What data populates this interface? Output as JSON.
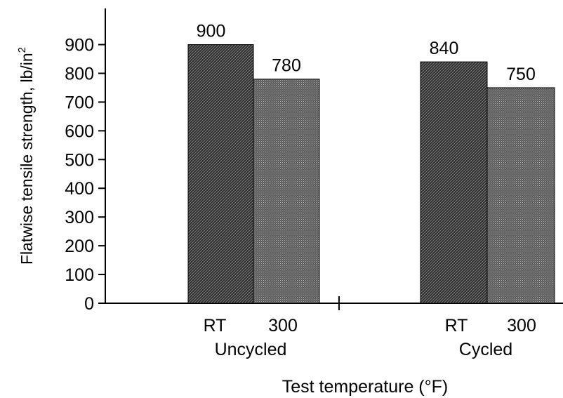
{
  "chart_data": {
    "type": "bar",
    "ylabel": "Flatwise tensile strength, lb/in",
    "ylabel_superscript": "2",
    "xlabel": "Test temperature (°F)",
    "ylim": [
      0,
      1000
    ],
    "yticks": [
      0,
      100,
      200,
      300,
      400,
      500,
      600,
      700,
      800,
      900
    ],
    "groups": [
      {
        "label": "Uncycled",
        "bars": [
          {
            "category": "RT",
            "value": 900,
            "data_label": "900",
            "pattern": "dark"
          },
          {
            "category": "300",
            "value": 780,
            "data_label": "780",
            "pattern": "light"
          }
        ]
      },
      {
        "label": "Cycled",
        "bars": [
          {
            "category": "RT",
            "value": 840,
            "data_label": "840",
            "pattern": "dark"
          },
          {
            "category": "300",
            "value": 750,
            "data_label": "750",
            "pattern": "light"
          }
        ]
      }
    ],
    "grid": false,
    "legend": "none",
    "colors": {
      "dark": "#3a3a3a",
      "light": "#6e6e6e",
      "axis": "#000000"
    }
  }
}
